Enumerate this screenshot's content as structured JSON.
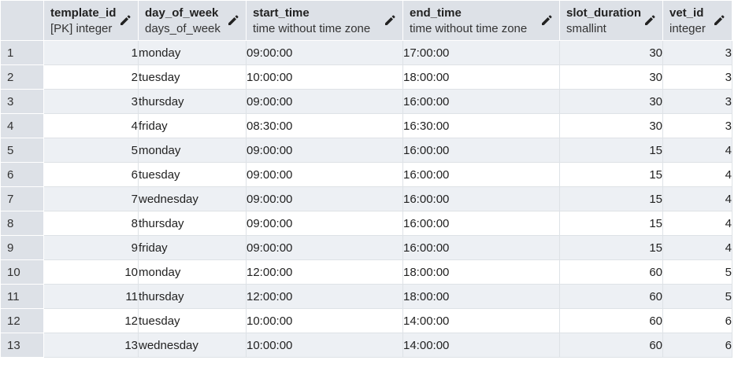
{
  "columns": [
    {
      "name": "template_id",
      "type": "[PK] integer",
      "icon": "pencil-icon"
    },
    {
      "name": "day_of_week",
      "type": "days_of_week",
      "icon": "pencil-icon"
    },
    {
      "name": "start_time",
      "type": "time without time zone",
      "icon": "pencil-icon"
    },
    {
      "name": "end_time",
      "type": "time without time zone",
      "icon": "pencil-icon"
    },
    {
      "name": "slot_duration",
      "type": "smallint",
      "icon": "pencil-icon"
    },
    {
      "name": "vet_id",
      "type": "integer",
      "icon": "pencil-icon"
    }
  ],
  "rows": [
    {
      "n": "1",
      "template_id": "1",
      "day_of_week": "monday",
      "start_time": "09:00:00",
      "end_time": "17:00:00",
      "slot_duration": "30",
      "vet_id": "3"
    },
    {
      "n": "2",
      "template_id": "2",
      "day_of_week": "tuesday",
      "start_time": "10:00:00",
      "end_time": "18:00:00",
      "slot_duration": "30",
      "vet_id": "3"
    },
    {
      "n": "3",
      "template_id": "3",
      "day_of_week": "thursday",
      "start_time": "09:00:00",
      "end_time": "16:00:00",
      "slot_duration": "30",
      "vet_id": "3"
    },
    {
      "n": "4",
      "template_id": "4",
      "day_of_week": "friday",
      "start_time": "08:30:00",
      "end_time": "16:30:00",
      "slot_duration": "30",
      "vet_id": "3"
    },
    {
      "n": "5",
      "template_id": "5",
      "day_of_week": "monday",
      "start_time": "09:00:00",
      "end_time": "16:00:00",
      "slot_duration": "15",
      "vet_id": "4"
    },
    {
      "n": "6",
      "template_id": "6",
      "day_of_week": "tuesday",
      "start_time": "09:00:00",
      "end_time": "16:00:00",
      "slot_duration": "15",
      "vet_id": "4"
    },
    {
      "n": "7",
      "template_id": "7",
      "day_of_week": "wednesday",
      "start_time": "09:00:00",
      "end_time": "16:00:00",
      "slot_duration": "15",
      "vet_id": "4"
    },
    {
      "n": "8",
      "template_id": "8",
      "day_of_week": "thursday",
      "start_time": "09:00:00",
      "end_time": "16:00:00",
      "slot_duration": "15",
      "vet_id": "4"
    },
    {
      "n": "9",
      "template_id": "9",
      "day_of_week": "friday",
      "start_time": "09:00:00",
      "end_time": "16:00:00",
      "slot_duration": "15",
      "vet_id": "4"
    },
    {
      "n": "10",
      "template_id": "10",
      "day_of_week": "monday",
      "start_time": "12:00:00",
      "end_time": "18:00:00",
      "slot_duration": "60",
      "vet_id": "5"
    },
    {
      "n": "11",
      "template_id": "11",
      "day_of_week": "thursday",
      "start_time": "12:00:00",
      "end_time": "18:00:00",
      "slot_duration": "60",
      "vet_id": "5"
    },
    {
      "n": "12",
      "template_id": "12",
      "day_of_week": "tuesday",
      "start_time": "10:00:00",
      "end_time": "14:00:00",
      "slot_duration": "60",
      "vet_id": "6"
    },
    {
      "n": "13",
      "template_id": "13",
      "day_of_week": "wednesday",
      "start_time": "10:00:00",
      "end_time": "14:00:00",
      "slot_duration": "60",
      "vet_id": "6"
    }
  ],
  "colors": {
    "header_bg": "#dde1e7",
    "row_stripe": "#edf0f4",
    "row_plain": "#ffffff",
    "grid_line": "#dee2e6"
  }
}
